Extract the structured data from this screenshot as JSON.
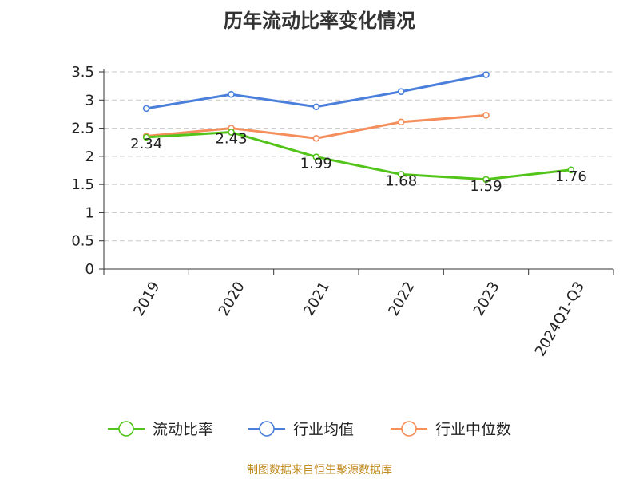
{
  "title": "历年流动比率变化情况",
  "source": "制图数据来自恒生聚源数据库",
  "chart_data": {
    "type": "line",
    "title": "历年流动比率变化情况",
    "categories": [
      "2019",
      "2020",
      "2021",
      "2022",
      "2023",
      "2024Q1-Q3"
    ],
    "ylim": [
      0,
      3.5
    ],
    "yticks": [
      "0",
      "0.5",
      "1",
      "1.5",
      "2",
      "2.5",
      "3",
      "3.5"
    ],
    "grid": true,
    "legend_position": "bottom",
    "series": [
      {
        "name": "流动比率",
        "color": "#52c41a",
        "values": [
          2.34,
          2.43,
          1.99,
          1.68,
          1.59,
          1.76
        ],
        "labels": [
          "2.34",
          "2.43",
          "1.99",
          "1.68",
          "1.59",
          "1.76"
        ]
      },
      {
        "name": "行业均值",
        "color": "#4a7fdb",
        "values": [
          2.85,
          3.1,
          2.88,
          3.15,
          3.45,
          null
        ]
      },
      {
        "name": "行业中位数",
        "color": "#f58e5a",
        "values": [
          2.36,
          2.5,
          2.32,
          2.61,
          2.73,
          null
        ]
      }
    ]
  }
}
